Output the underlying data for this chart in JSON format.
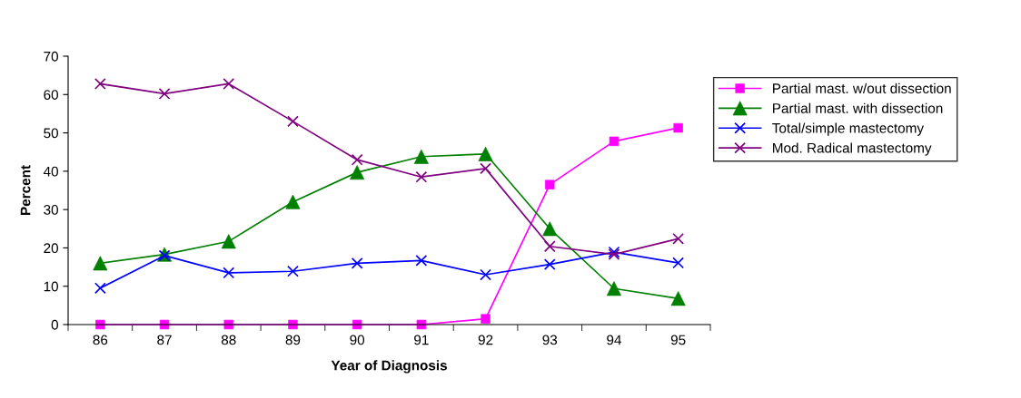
{
  "chart_data": {
    "type": "line",
    "xlabel": "Year of Diagnosis",
    "ylabel": "Percent",
    "categories": [
      "86",
      "87",
      "88",
      "89",
      "90",
      "91",
      "92",
      "93",
      "94",
      "95"
    ],
    "ylim": [
      0,
      70
    ],
    "yticks": [
      0,
      10,
      20,
      30,
      40,
      50,
      60,
      70
    ],
    "grid": false,
    "legend": "top right",
    "series": [
      {
        "name": "Partial mast. w/out dissection",
        "color": "#ff00ff",
        "marker": "square",
        "values": [
          0,
          0,
          0,
          0,
          0,
          0,
          1.5,
          36.5,
          47.8,
          51.3
        ]
      },
      {
        "name": "Partial mast. with dissection",
        "color": "#008000",
        "marker": "triangle",
        "values": [
          16,
          18.3,
          21.7,
          32,
          39.7,
          43.8,
          44.5,
          25,
          9.4,
          6.8
        ]
      },
      {
        "name": "Total/simple mastectomy",
        "color": "#0000ff",
        "marker": "cross",
        "values": [
          9.5,
          18,
          13.5,
          13.9,
          16,
          16.7,
          13,
          15.7,
          18.9,
          16.1
        ]
      },
      {
        "name": "Mod. Radical mastectomy",
        "color": "#800080",
        "marker": "cross",
        "values": [
          62.8,
          60.2,
          62.8,
          53,
          43,
          38.5,
          40.7,
          20.4,
          18.3,
          22.4
        ]
      }
    ]
  }
}
